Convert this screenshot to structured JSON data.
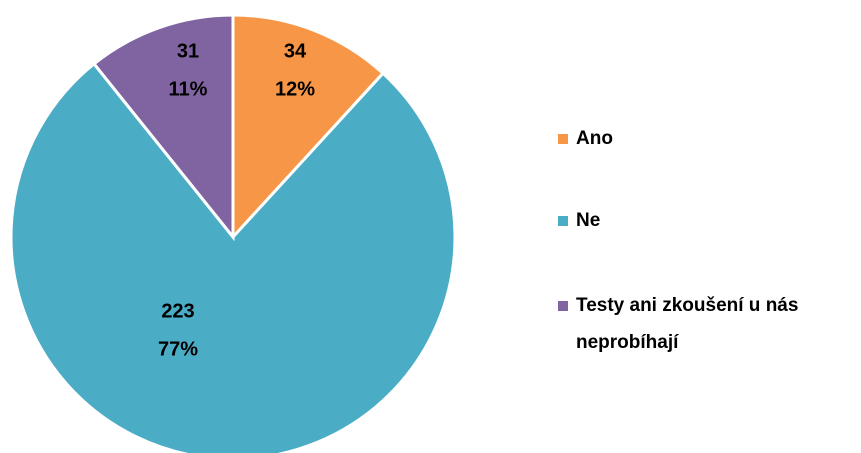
{
  "chart_data": {
    "type": "pie",
    "categories": [
      "Ano",
      "Ne",
      "Testy ani zkoušení u nás neprobíhají"
    ],
    "values": [
      34,
      223,
      31
    ],
    "percent_labels": [
      "12%",
      "77%",
      "11%"
    ],
    "colors": [
      "#f79646",
      "#4bacc6",
      "#8064a2"
    ],
    "legend": "right"
  }
}
